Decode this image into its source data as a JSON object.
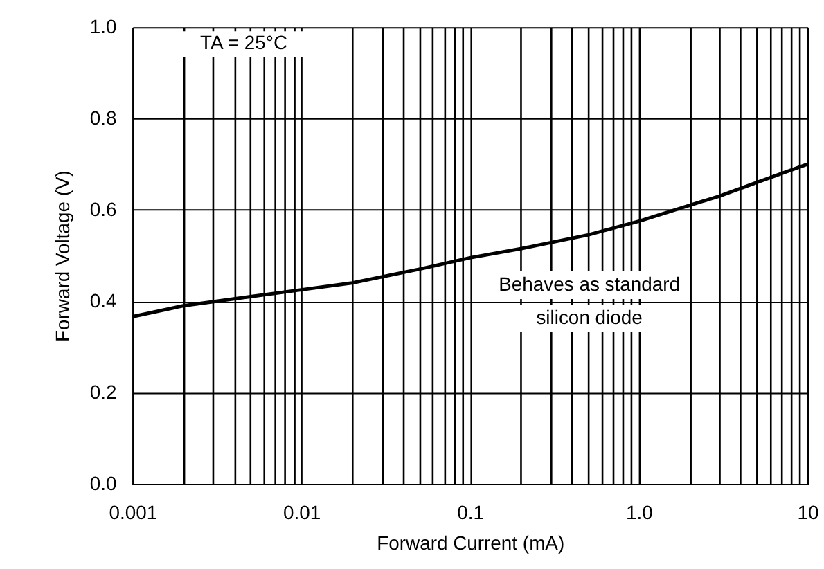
{
  "chart_data": {
    "type": "line",
    "xlabel": "Forward Current (mA)",
    "ylabel": "Forward Voltage (V)",
    "x": [
      0.001,
      0.002,
      0.005,
      0.01,
      0.02,
      0.05,
      0.1,
      0.2,
      0.5,
      1,
      2,
      3,
      5,
      10
    ],
    "series": [
      {
        "color": "#000000",
        "values": [
          0.366,
          0.39,
          0.41,
          0.425,
          0.44,
          0.47,
          0.495,
          0.515,
          0.545,
          0.575,
          0.61,
          0.63,
          0.66,
          0.7
        ]
      }
    ],
    "log": "x",
    "xlim": [
      0.001,
      10
    ],
    "ylim": [
      0,
      1
    ],
    "xticks": [
      {
        "value": 0.001,
        "label": "0.001"
      },
      {
        "value": 0.002,
        "label": null
      },
      {
        "value": 0.003,
        "label": null
      },
      {
        "value": 0.004,
        "label": null
      },
      {
        "value": 0.005,
        "label": null
      },
      {
        "value": 0.006,
        "label": null
      },
      {
        "value": 0.007,
        "label": null
      },
      {
        "value": 0.008,
        "label": null
      },
      {
        "value": 0.009,
        "label": null
      },
      {
        "value": 0.01,
        "label": "0.01"
      },
      {
        "value": 0.02,
        "label": null
      },
      {
        "value": 0.03,
        "label": null
      },
      {
        "value": 0.04,
        "label": null
      },
      {
        "value": 0.05,
        "label": null
      },
      {
        "value": 0.06,
        "label": null
      },
      {
        "value": 0.07,
        "label": null
      },
      {
        "value": 0.08,
        "label": null
      },
      {
        "value": 0.09,
        "label": null
      },
      {
        "value": 0.1,
        "label": "0.1"
      },
      {
        "value": 0.2,
        "label": null
      },
      {
        "value": 0.3,
        "label": null
      },
      {
        "value": 0.4,
        "label": null
      },
      {
        "value": 0.5,
        "label": null
      },
      {
        "value": 0.6,
        "label": null
      },
      {
        "value": 0.7,
        "label": null
      },
      {
        "value": 0.8,
        "label": null
      },
      {
        "value": 0.9,
        "label": null
      },
      {
        "value": 1,
        "label": "1.0"
      },
      {
        "value": 2,
        "label": null
      },
      {
        "value": 3,
        "label": null
      },
      {
        "value": 4,
        "label": null
      },
      {
        "value": 5,
        "label": null
      },
      {
        "value": 6,
        "label": null
      },
      {
        "value": 7,
        "label": null
      },
      {
        "value": 8,
        "label": null
      },
      {
        "value": 9,
        "label": null
      },
      {
        "value": 10,
        "label": "10"
      }
    ],
    "yticks": [
      {
        "value": 0,
        "label": "0.0"
      },
      {
        "value": 0.2,
        "label": "0.2"
      },
      {
        "value": 0.4,
        "label": "0.4"
      },
      {
        "value": 0.6,
        "label": "0.6"
      },
      {
        "value": 0.8,
        "label": "0.8"
      },
      {
        "value": 1,
        "label": "1.0"
      }
    ],
    "grid": true,
    "marker": "none",
    "line_style": "solid",
    "annotations": [
      "TA = 25°C",
      "Behaves as standard silicon diode"
    ]
  }
}
